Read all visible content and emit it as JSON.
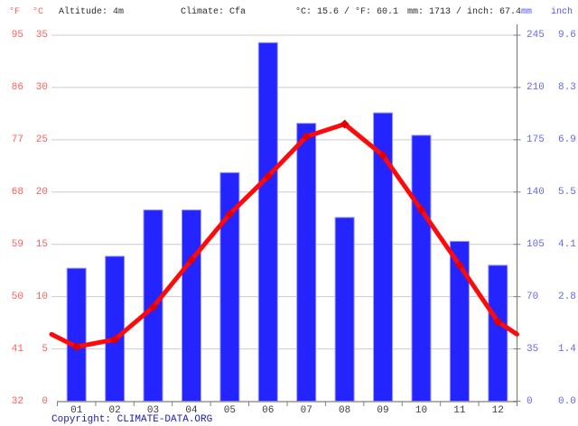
{
  "header": {
    "fahrenheit_label": "°F",
    "celsius_label": "°C",
    "altitude": "Altitude: 4m",
    "climate": "Climate: Cfa",
    "temperature_summary": "°C: 15.6 / °F: 60.1",
    "precipitation_summary": "mm: 1713 / inch: 67.4",
    "mm_label": "mm",
    "inch_label": "inch"
  },
  "axes": {
    "fahrenheit_ticks": [
      "95",
      "86",
      "77",
      "68",
      "59",
      "50",
      "41",
      "32"
    ],
    "celsius_ticks": [
      "35",
      "30",
      "25",
      "20",
      "15",
      "10",
      "5",
      "0"
    ],
    "mm_ticks": [
      "245",
      "210",
      "175",
      "140",
      "105",
      "70",
      "35",
      "0"
    ],
    "inch_ticks": [
      "9.6",
      "8.3",
      "6.9",
      "5.5",
      "4.1",
      "2.8",
      "1.4",
      "0.0"
    ]
  },
  "months": [
    "01",
    "02",
    "03",
    "04",
    "05",
    "06",
    "07",
    "08",
    "09",
    "10",
    "11",
    "12"
  ],
  "footer": {
    "copyright": "Copyright: CLIMATE-DATA.ORG"
  },
  "colors": {
    "bar_fill": "#2424ff",
    "bar_border": "#9898ff",
    "line_red": "#ff0a0a",
    "marker_red": "#e00000",
    "gridline": "#cccccc",
    "axis": "#808080",
    "temp_axis_text": "#ff5c5c",
    "precip_axis_text": "#6666ee",
    "month_text": "#3c3c3c",
    "header_text": "#2b2b2b",
    "copyright_text": "#1a1abf"
  },
  "chart_data": {
    "type": "combo",
    "title": "Climate graph (Cfa), altitude 4 m",
    "categories": [
      "01",
      "02",
      "03",
      "04",
      "05",
      "06",
      "07",
      "08",
      "09",
      "10",
      "11",
      "12"
    ],
    "grid": true,
    "legend": false,
    "series": [
      {
        "name": "Precipitation",
        "type": "bar",
        "unit": "mm",
        "axis": "right",
        "ylim": [
          0,
          245
        ],
        "ticks_mm": [
          245,
          210,
          175,
          140,
          105,
          70,
          35,
          0
        ],
        "ticks_inch": [
          9.6,
          8.3,
          6.9,
          5.5,
          4.1,
          2.8,
          1.4,
          0.0
        ],
        "annual_total_mm": 1713,
        "annual_total_inch": 67.4,
        "values": [
          89,
          97,
          128,
          128,
          153,
          240,
          186,
          123,
          193,
          178,
          107,
          91
        ],
        "color": "#2424ff"
      },
      {
        "name": "Temperature",
        "type": "line",
        "unit": "°C",
        "axis": "left",
        "ylim": [
          0,
          35
        ],
        "ticks_c": [
          35,
          30,
          25,
          20,
          15,
          10,
          5,
          0
        ],
        "ticks_f": [
          95,
          86,
          77,
          68,
          59,
          50,
          41,
          32
        ],
        "annual_mean_c": 15.6,
        "annual_mean_f": 60.1,
        "values": [
          5.2,
          5.9,
          9.0,
          13.5,
          17.9,
          21.5,
          25.3,
          26.5,
          23.5,
          18.3,
          13.0,
          7.6
        ],
        "edge_value": 6.4,
        "color": "#ff0a0a"
      }
    ]
  }
}
